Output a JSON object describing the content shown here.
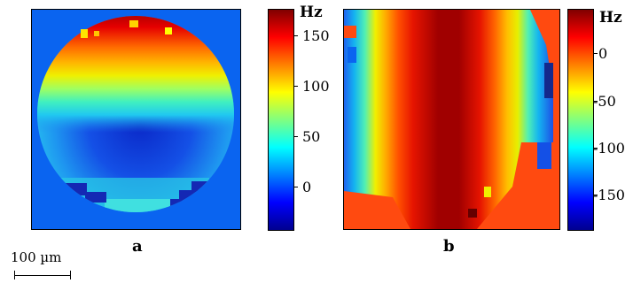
{
  "panels": [
    {
      "label": "a",
      "colorbar_unit": "Hz",
      "colorbar_ticks": [
        "150",
        "100",
        "50",
        "0"
      ],
      "colorbar_range": [
        -45,
        175
      ]
    },
    {
      "label": "b",
      "colorbar_unit": "Hz",
      "colorbar_ticks": [
        "0",
        "-50",
        "-100",
        "-150"
      ],
      "colorbar_range": [
        -190,
        40
      ]
    }
  ],
  "scale_bar": {
    "text": "100 µm"
  },
  "colors": {
    "field_background": "#0a64f0",
    "background_b": "#ff4a10",
    "frame": "#000000"
  }
}
